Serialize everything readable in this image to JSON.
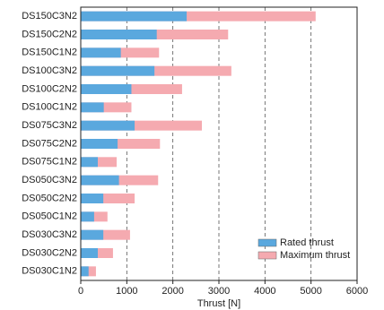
{
  "chart_data": {
    "type": "bar",
    "orientation": "horizontal",
    "overlay": true,
    "x_label": "Thrust [N]",
    "categories": [
      "DS150C3N2",
      "DS150C2N2",
      "DS150C1N2",
      "DS100C3N2",
      "DS100C2N2",
      "DS100C1N2",
      "DS075C3N2",
      "DS075C2N2",
      "DS075C1N2",
      "DS050C3N2",
      "DS050C2N2",
      "DS050C1N2",
      "DS030C3N2",
      "DS030C2N2",
      "DS030C1N2"
    ],
    "series": [
      {
        "name": "Maximum thrust",
        "color": "#f5aab0",
        "values": [
          5100,
          3200,
          1700,
          3270,
          2200,
          1100,
          2630,
          1720,
          780,
          1680,
          1170,
          580,
          1070,
          700,
          330
        ]
      },
      {
        "name": "Rated thrust",
        "color": "#5aa8de",
        "values": [
          2300,
          1650,
          870,
          1600,
          1100,
          500,
          1170,
          800,
          370,
          830,
          490,
          290,
          490,
          370,
          170
        ]
      }
    ],
    "xlim": [
      0,
      6000
    ],
    "xticks": [
      0,
      1000,
      2000,
      3000,
      4000,
      5000,
      6000
    ],
    "grid": true,
    "legend": "lower right"
  }
}
